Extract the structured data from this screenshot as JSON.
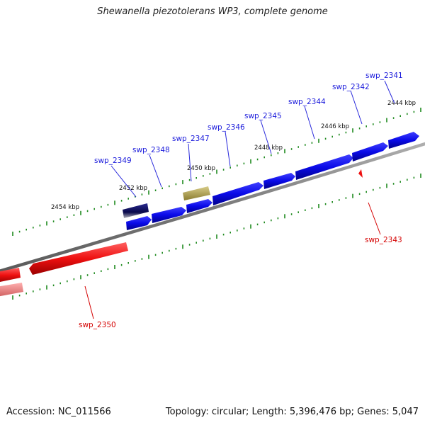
{
  "title": "Shewanella piezotolerans WP3, complete genome",
  "footer": {
    "accession": "Accession: NC_011566",
    "summary": "Topology: circular; Length: 5,396,476 bp; Genes: 5,047"
  },
  "scale_labels": [
    "2444 kbp",
    "2446 kbp",
    "2448 kbp",
    "2450 kbp",
    "2452 kbp",
    "2454 kbp"
  ],
  "genes_forward": [
    "swp_2341",
    "swp_2342",
    "swp_2344",
    "swp_2345",
    "swp_2346",
    "swp_2347",
    "swp_2348",
    "swp_2349"
  ],
  "genes_reverse": [
    "swp_2343",
    "swp_2350"
  ],
  "colors": {
    "forward_strand": "#1010e0",
    "reverse_strand": "#ee1010",
    "backbone": "#808080",
    "ticks": "#1f8a1f",
    "highlight_gene": "#b8a860",
    "dark_gene": "#101060"
  }
}
